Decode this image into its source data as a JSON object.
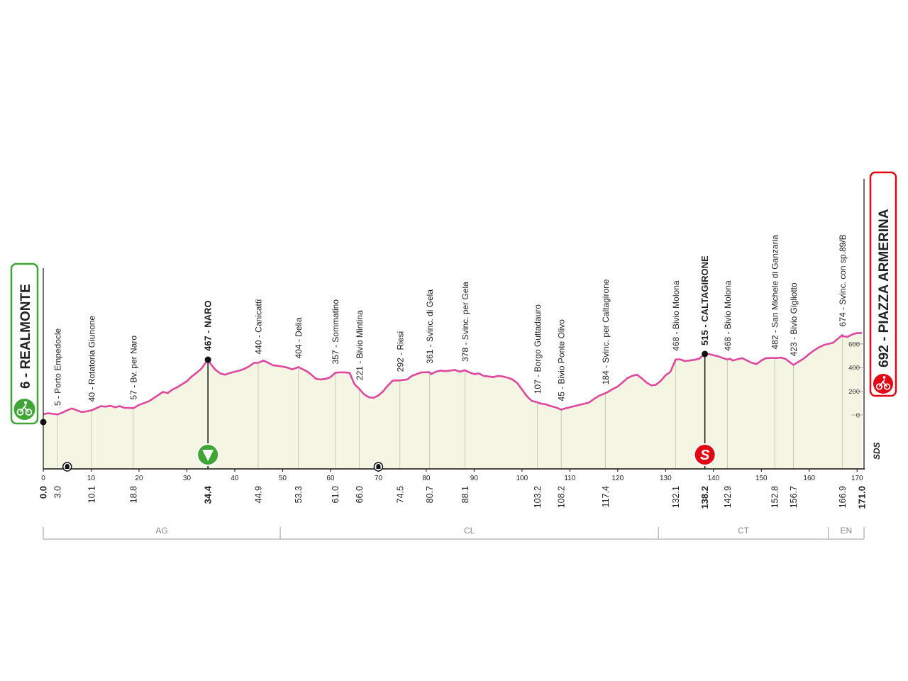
{
  "chart_data": {
    "type": "area",
    "title": "",
    "xlabel": "",
    "ylabel": "",
    "xlim": [
      0,
      171
    ],
    "ylim": [
      0,
      700
    ],
    "y_ticks": [
      0,
      200,
      400,
      600
    ],
    "x_ticks": [
      0,
      10,
      20,
      30,
      40,
      50,
      60,
      70,
      80,
      90,
      100,
      110,
      120,
      130,
      140,
      150,
      160,
      170
    ],
    "grid": false,
    "colors": {
      "profile_line": "#e0479e",
      "fill": "#f4f5e3",
      "start": "#3fa535",
      "finish": "#e30613"
    },
    "start": {
      "label": "6 - REALMONTE",
      "km": 0.0,
      "km_label": "0.0",
      "alt": 6
    },
    "finish": {
      "label": "692 - PIAZZA ARMERINA",
      "km": 171.0,
      "km_label": "171.0",
      "alt": 692
    },
    "profile": [
      [
        0,
        6
      ],
      [
        1,
        15
      ],
      [
        3,
        5
      ],
      [
        4,
        20
      ],
      [
        5,
        40
      ],
      [
        6,
        55
      ],
      [
        7,
        40
      ],
      [
        8,
        25
      ],
      [
        9,
        30
      ],
      [
        10.1,
        40
      ],
      [
        11,
        55
      ],
      [
        12,
        75
      ],
      [
        13,
        70
      ],
      [
        14,
        78
      ],
      [
        15,
        65
      ],
      [
        16,
        75
      ],
      [
        17,
        60
      ],
      [
        18,
        60
      ],
      [
        18.8,
        57
      ],
      [
        20,
        85
      ],
      [
        22,
        115
      ],
      [
        23,
        140
      ],
      [
        25,
        195
      ],
      [
        26,
        185
      ],
      [
        27,
        215
      ],
      [
        28,
        235
      ],
      [
        29,
        260
      ],
      [
        30,
        285
      ],
      [
        31,
        325
      ],
      [
        32,
        355
      ],
      [
        33,
        390
      ],
      [
        34.4,
        467
      ],
      [
        35,
        430
      ],
      [
        36,
        380
      ],
      [
        37,
        350
      ],
      [
        38,
        340
      ],
      [
        39,
        355
      ],
      [
        40,
        365
      ],
      [
        41,
        375
      ],
      [
        42,
        390
      ],
      [
        43,
        410
      ],
      [
        44,
        440
      ],
      [
        44.9,
        440
      ],
      [
        46,
        460
      ],
      [
        47,
        440
      ],
      [
        48,
        420
      ],
      [
        49,
        415
      ],
      [
        50,
        408
      ],
      [
        51,
        400
      ],
      [
        52,
        385
      ],
      [
        53.3,
        404
      ],
      [
        54,
        390
      ],
      [
        55,
        370
      ],
      [
        56,
        340
      ],
      [
        57,
        305
      ],
      [
        58,
        300
      ],
      [
        59,
        305
      ],
      [
        60,
        320
      ],
      [
        61,
        357
      ],
      [
        62,
        360
      ],
      [
        63,
        360
      ],
      [
        64,
        355
      ],
      [
        65,
        260
      ],
      [
        66,
        221
      ],
      [
        67,
        175
      ],
      [
        68,
        150
      ],
      [
        69,
        145
      ],
      [
        70,
        165
      ],
      [
        71,
        200
      ],
      [
        72,
        250
      ],
      [
        73,
        290
      ],
      [
        74.5,
        292
      ],
      [
        75,
        295
      ],
      [
        76,
        300
      ],
      [
        77,
        330
      ],
      [
        78,
        345
      ],
      [
        79,
        360
      ],
      [
        80.7,
        361
      ],
      [
        81,
        345
      ],
      [
        82,
        365
      ],
      [
        83,
        375
      ],
      [
        84,
        370
      ],
      [
        85,
        375
      ],
      [
        86,
        380
      ],
      [
        87,
        365
      ],
      [
        88.1,
        378
      ],
      [
        89,
        360
      ],
      [
        90,
        345
      ],
      [
        91,
        350
      ],
      [
        92,
        330
      ],
      [
        93,
        325
      ],
      [
        94,
        320
      ],
      [
        95,
        330
      ],
      [
        96,
        325
      ],
      [
        97,
        315
      ],
      [
        98,
        300
      ],
      [
        99,
        270
      ],
      [
        100,
        215
      ],
      [
        101,
        160
      ],
      [
        102,
        120
      ],
      [
        103.2,
        107
      ],
      [
        104,
        95
      ],
      [
        105,
        90
      ],
      [
        106,
        75
      ],
      [
        107,
        65
      ],
      [
        108.2,
        45
      ],
      [
        109,
        55
      ],
      [
        110,
        65
      ],
      [
        111,
        75
      ],
      [
        112,
        85
      ],
      [
        113,
        95
      ],
      [
        114,
        105
      ],
      [
        115,
        135
      ],
      [
        116,
        160
      ],
      [
        117.4,
        184
      ],
      [
        118,
        195
      ],
      [
        119,
        220
      ],
      [
        120,
        240
      ],
      [
        121,
        275
      ],
      [
        122,
        310
      ],
      [
        123,
        330
      ],
      [
        124,
        340
      ],
      [
        125,
        310
      ],
      [
        126,
        275
      ],
      [
        127,
        250
      ],
      [
        128,
        255
      ],
      [
        129,
        290
      ],
      [
        130,
        335
      ],
      [
        131,
        365
      ],
      [
        132.1,
        468
      ],
      [
        133,
        470
      ],
      [
        134,
        455
      ],
      [
        135,
        460
      ],
      [
        136,
        465
      ],
      [
        137,
        475
      ],
      [
        138.2,
        515
      ],
      [
        139,
        515
      ],
      [
        140,
        505
      ],
      [
        141,
        495
      ],
      [
        142,
        480
      ],
      [
        142.9,
        468
      ],
      [
        143.5,
        475
      ],
      [
        144,
        460
      ],
      [
        145,
        470
      ],
      [
        146,
        480
      ],
      [
        147,
        460
      ],
      [
        148,
        440
      ],
      [
        149,
        430
      ],
      [
        150,
        460
      ],
      [
        151,
        480
      ],
      [
        152.8,
        482
      ],
      [
        153,
        480
      ],
      [
        154,
        485
      ],
      [
        155,
        475
      ],
      [
        156.7,
        423
      ],
      [
        157,
        430
      ],
      [
        158,
        455
      ],
      [
        159,
        480
      ],
      [
        160,
        515
      ],
      [
        161,
        545
      ],
      [
        162,
        570
      ],
      [
        163,
        590
      ],
      [
        164,
        600
      ],
      [
        165,
        610
      ],
      [
        166.9,
        674
      ],
      [
        167,
        665
      ],
      [
        168,
        660
      ],
      [
        169,
        680
      ],
      [
        170,
        692
      ],
      [
        171,
        692
      ]
    ],
    "waypoints": [
      {
        "km": 3.0,
        "km_label": "3.0",
        "label": "5 - Porto Empedocle",
        "alt": 5,
        "bold": false
      },
      {
        "km": 10.1,
        "km_label": "10.1",
        "label": "40 - Rotatoria Giunone",
        "alt": 40,
        "bold": false
      },
      {
        "km": 18.8,
        "km_label": "18.8",
        "label": "57 - Bv. per Naro",
        "alt": 57,
        "bold": false
      },
      {
        "km": 34.4,
        "km_label": "34.4",
        "label": "467 - NARO",
        "alt": 467,
        "bold": true
      },
      {
        "km": 44.9,
        "km_label": "44.9",
        "label": "440 - Canicattì",
        "alt": 440,
        "bold": false
      },
      {
        "km": 53.3,
        "km_label": "53.3",
        "label": "404 - Delia",
        "alt": 404,
        "bold": false
      },
      {
        "km": 61.0,
        "km_label": "61.0",
        "label": "357 - Sommatino",
        "alt": 357,
        "bold": false
      },
      {
        "km": 66.0,
        "km_label": "66.0",
        "label": "221 - Bivio Mintina",
        "alt": 221,
        "bold": false
      },
      {
        "km": 74.5,
        "km_label": "74.5",
        "label": "292 - Riesi",
        "alt": 292,
        "bold": false
      },
      {
        "km": 80.7,
        "km_label": "80.7",
        "label": "361 - Svinc. di Gela",
        "alt": 361,
        "bold": false
      },
      {
        "km": 88.1,
        "km_label": "88.1",
        "label": "378 - Svinc. per Gela",
        "alt": 378,
        "bold": false
      },
      {
        "km": 103.2,
        "km_label": "103.2",
        "label": "107 - Borgo Guttadauro",
        "alt": 107,
        "bold": false
      },
      {
        "km": 108.2,
        "km_label": "108.2",
        "label": "45 - Bivio Ponte Olivo",
        "alt": 45,
        "bold": false
      },
      {
        "km": 117.4,
        "km_label": "117.4",
        "label": "184 - Svinc. per Caltagirone",
        "alt": 184,
        "bold": false
      },
      {
        "km": 132.1,
        "km_label": "132.1",
        "label": "468 - Bivio Molona",
        "alt": 468,
        "bold": false
      },
      {
        "km": 138.2,
        "km_label": "138.2",
        "label": "515 - CALTAGIRONE",
        "alt": 515,
        "bold": true
      },
      {
        "km": 142.9,
        "km_label": "142.9",
        "label": "468 - Bivio Molona",
        "alt": 468,
        "bold": false
      },
      {
        "km": 152.8,
        "km_label": "152.8",
        "label": "482 - San Michele di Ganzaria",
        "alt": 482,
        "bold": false
      },
      {
        "km": 156.7,
        "km_label": "156.7",
        "label": "423 - Bivio Gigliotto",
        "alt": 423,
        "bold": false
      },
      {
        "km": 166.9,
        "km_label": "166.9",
        "label": "674 - Svinc.  con sp.89/B",
        "alt": 674,
        "bold": false
      }
    ],
    "markers": [
      {
        "type": "intermediate-sprint",
        "km": 34.4
      },
      {
        "type": "sprint",
        "km": 138.2
      },
      {
        "type": "tunnel",
        "km": 5
      },
      {
        "type": "tunnel",
        "km": 70
      }
    ],
    "provinces": [
      {
        "label": "AG",
        "from": 0,
        "to": 49.5
      },
      {
        "label": "CL",
        "from": 49.5,
        "to": 128.5
      },
      {
        "label": "CT",
        "from": 128.5,
        "to": 164
      },
      {
        "label": "EN",
        "from": 164,
        "to": 171
      }
    ],
    "brand": "SDS"
  }
}
